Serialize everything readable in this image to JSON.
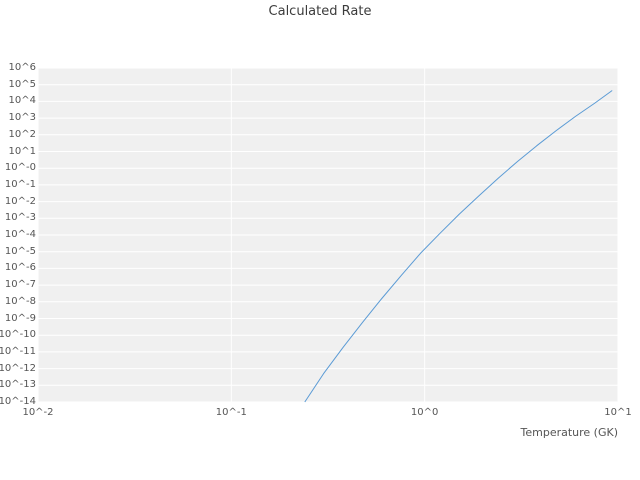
{
  "chart_data": {
    "type": "line",
    "title": "Calculated Rate",
    "xlabel": "Temperature (GK)",
    "ylabel": "",
    "x_scale": "log",
    "y_scale": "log",
    "xlim_log10": [
      -2,
      1
    ],
    "ylim_log10": [
      -14,
      6
    ],
    "grid": true,
    "legend": "none",
    "x_tick_labels": [
      "10^-2",
      "10^-1",
      "10^0",
      "10^1"
    ],
    "y_tick_labels": [
      "10^6",
      "10^5",
      "10^4",
      "10^3",
      "10^2",
      "10^1",
      "10^-0",
      "10^-1",
      "10^-2",
      "10^-3",
      "10^-4",
      "10^-5",
      "10^-6",
      "10^-7",
      "10^-8",
      "10^-9",
      "10^-10",
      "10^-11",
      "10^-12",
      "10^-13",
      "10^-14"
    ],
    "colors": {
      "line": "#5b9bd5",
      "plot_bg": "#f0f0f0",
      "grid": "#ffffff",
      "tick_text": "#555555",
      "title_text": "#3c3c3c"
    },
    "series": [
      {
        "name": "calculated-rate",
        "x_gk": [
          0.24,
          0.3,
          0.38,
          0.48,
          0.6,
          0.76,
          0.95,
          1.2,
          1.51,
          1.91,
          2.4,
          3.02,
          3.8,
          4.79,
          6.03,
          7.59,
          9.33
        ],
        "log10_rate": [
          -14.0,
          -12.3,
          -10.7,
          -9.2,
          -7.8,
          -6.4,
          -5.1,
          -3.9,
          -2.75,
          -1.65,
          -0.6,
          0.4,
          1.35,
          2.25,
          3.1,
          3.9,
          4.65
        ]
      }
    ]
  }
}
